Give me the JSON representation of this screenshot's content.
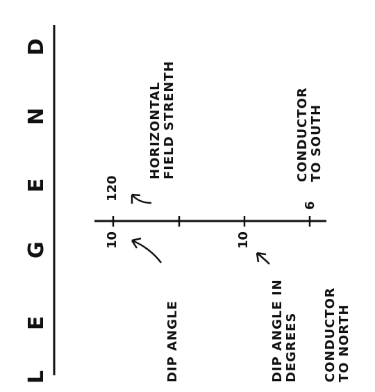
{
  "legend": {
    "letters": [
      "L",
      "E",
      "G",
      "E",
      "N",
      "D"
    ]
  },
  "labels": {
    "horizontal_line1": "HORIZONTAL",
    "horizontal_line2": "FIELD STRENTH",
    "conductor_south_line1": "CONDUCTOR",
    "conductor_south_line2": "TO SOUTH",
    "dip_angle": "DIP ANGLE",
    "dip_degrees_line1": "DIP ANGLE IN",
    "dip_degrees_line2": "DEGREES",
    "conductor_north_line1": "CONDUCTOR",
    "conductor_north_line2": "TO NORTH"
  },
  "values": {
    "field_strength": "120",
    "dip_angle_sample": "10",
    "dip_degrees_sample": "10",
    "conductor_marker": "6"
  }
}
